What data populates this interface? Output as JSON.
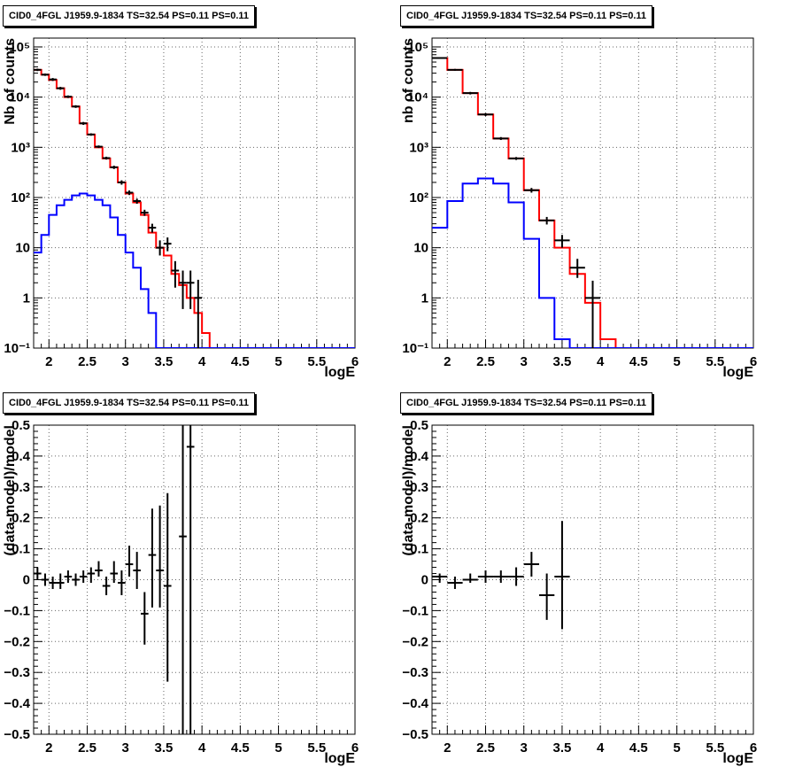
{
  "chart_data": [
    {
      "type": "histogram",
      "title": "CID0_4FGL J1959.9-1834 TS=32.54 PS=0.11 PS=0.11",
      "xlabel": "logE",
      "ylabel": "Nb of counts",
      "xlim": [
        1.8,
        6
      ],
      "ylim": [
        0.1,
        150000
      ],
      "yscale": "log",
      "grid": true,
      "x_ticks": [
        "2",
        "2.5",
        "3",
        "3.5",
        "4",
        "4.5",
        "5",
        "5.5",
        "6"
      ],
      "y_ticks": [
        {
          "v": 0.1,
          "label": "10⁻¹"
        },
        {
          "v": 1,
          "label": "1"
        },
        {
          "v": 10,
          "label": "10"
        },
        {
          "v": 100,
          "label": "10²"
        },
        {
          "v": 1000,
          "label": "10³"
        },
        {
          "v": 10000,
          "label": "10⁴"
        },
        {
          "v": 100000,
          "label": "10⁵"
        }
      ],
      "bin_edges": [
        1.8,
        1.9,
        2.0,
        2.1,
        2.2,
        2.3,
        2.4,
        2.5,
        2.6,
        2.7,
        2.8,
        2.9,
        3.0,
        3.1,
        3.2,
        3.3,
        3.4,
        3.5,
        3.6,
        3.7,
        3.8,
        3.9,
        4.0,
        4.1,
        4.2,
        4.3,
        4.4,
        4.5,
        4.6,
        4.7,
        4.8,
        4.9,
        5.0,
        5.1,
        5.2,
        5.3,
        5.4,
        5.5,
        5.6,
        5.7,
        5.8,
        5.9,
        6.0
      ],
      "series": [
        {
          "color": "#ff0000",
          "values": [
            35000,
            28000,
            22000,
            15000,
            10000,
            6500,
            3000,
            1800,
            1000,
            600,
            400,
            200,
            120,
            80,
            45,
            20,
            10,
            7,
            3,
            1.8,
            1,
            0.5,
            0.2,
            0.1,
            0.1,
            0.1,
            0.1,
            0.1,
            0.1,
            0.1,
            0.1,
            0.1,
            0.1,
            0.1,
            0.1,
            0.1,
            0.1,
            0.1,
            0.1,
            0.1,
            0.1,
            0.1
          ]
        },
        {
          "color": "#0000ff",
          "values": [
            8,
            18,
            45,
            70,
            90,
            110,
            120,
            110,
            90,
            70,
            40,
            18,
            8,
            4,
            1.5,
            0.5,
            0.1,
            0.1,
            0.1,
            0.1,
            0.1,
            0.1,
            0.1,
            0.1,
            0.1,
            0.1,
            0.1,
            0.1,
            0.1,
            0.1,
            0.1,
            0.1,
            0.1,
            0.1,
            0.1,
            0.1,
            0.1,
            0.1,
            0.1,
            0.1,
            0.1,
            0.1
          ]
        }
      ],
      "points": [
        {
          "x": 1.85,
          "y": 35000,
          "lo": 33000,
          "hi": 37000
        },
        {
          "x": 1.95,
          "y": 28000,
          "lo": 26500,
          "hi": 29500
        },
        {
          "x": 2.05,
          "y": 22500,
          "lo": 21000,
          "hi": 24000
        },
        {
          "x": 2.15,
          "y": 15000,
          "lo": 14000,
          "hi": 16000
        },
        {
          "x": 2.25,
          "y": 10200,
          "lo": 9600,
          "hi": 10800
        },
        {
          "x": 2.35,
          "y": 6500,
          "lo": 6100,
          "hi": 6900
        },
        {
          "x": 2.45,
          "y": 3000,
          "lo": 2800,
          "hi": 3200
        },
        {
          "x": 2.55,
          "y": 1800,
          "lo": 1700,
          "hi": 1900
        },
        {
          "x": 2.65,
          "y": 1030,
          "lo": 970,
          "hi": 1090
        },
        {
          "x": 2.75,
          "y": 610,
          "lo": 570,
          "hi": 650
        },
        {
          "x": 2.85,
          "y": 400,
          "lo": 370,
          "hi": 430
        },
        {
          "x": 2.95,
          "y": 200,
          "lo": 180,
          "hi": 220
        },
        {
          "x": 3.05,
          "y": 125,
          "lo": 112,
          "hi": 138
        },
        {
          "x": 3.15,
          "y": 85,
          "lo": 75,
          "hi": 95
        },
        {
          "x": 3.25,
          "y": 50,
          "lo": 43,
          "hi": 57
        },
        {
          "x": 3.35,
          "y": 25,
          "lo": 20,
          "hi": 30
        },
        {
          "x": 3.45,
          "y": 10,
          "lo": 7,
          "hi": 14
        },
        {
          "x": 3.55,
          "y": 12,
          "lo": 8.5,
          "hi": 16
        },
        {
          "x": 3.65,
          "y": 3.5,
          "lo": 1.6,
          "hi": 5.4
        },
        {
          "x": 3.75,
          "y": 2,
          "lo": 0.6,
          "hi": 3.5
        },
        {
          "x": 3.85,
          "y": 2,
          "lo": 0.6,
          "hi": 3.5
        },
        {
          "x": 3.95,
          "y": 1,
          "lo": 0.1,
          "hi": 2.3
        }
      ]
    },
    {
      "type": "histogram",
      "title": "CID0_4FGL J1959.9-1834 TS=32.54 PS=0.11 PS=0.11",
      "xlabel": "logE",
      "ylabel": "nb of counts",
      "xlim": [
        1.8,
        6
      ],
      "ylim": [
        0.1,
        150000
      ],
      "yscale": "log",
      "grid": true,
      "x_ticks": [
        "2",
        "2.5",
        "3",
        "3.5",
        "4",
        "4.5",
        "5",
        "5.5",
        "6"
      ],
      "y_ticks": [
        {
          "v": 0.1,
          "label": "10⁻¹"
        },
        {
          "v": 1,
          "label": "1"
        },
        {
          "v": 10,
          "label": "10"
        },
        {
          "v": 100,
          "label": "10²"
        },
        {
          "v": 1000,
          "label": "10³"
        },
        {
          "v": 10000,
          "label": "10⁴"
        },
        {
          "v": 100000,
          "label": "10⁵"
        }
      ],
      "bin_edges": [
        1.8,
        2.0,
        2.2,
        2.4,
        2.6,
        2.8,
        3.0,
        3.2,
        3.4,
        3.6,
        3.8,
        4.0,
        4.2,
        4.4,
        4.6,
        4.8,
        5.0,
        5.2,
        5.4,
        5.6,
        5.8,
        6.0
      ],
      "series": [
        {
          "color": "#ff0000",
          "values": [
            60000,
            35000,
            12000,
            4500,
            1500,
            600,
            140,
            35,
            10,
            3,
            0.8,
            0.15,
            0.1,
            0.1,
            0.1,
            0.1,
            0.1,
            0.1,
            0.1,
            0.1,
            0.1
          ]
        },
        {
          "color": "#0000ff",
          "values": [
            25,
            85,
            190,
            240,
            190,
            80,
            15,
            1,
            0.15,
            0.1,
            0.1,
            0.1,
            0.1,
            0.1,
            0.1,
            0.1,
            0.1,
            0.1,
            0.1,
            0.1,
            0.1
          ]
        }
      ],
      "points": [
        {
          "x": 1.9,
          "y": 60000,
          "lo": 58000,
          "hi": 62000
        },
        {
          "x": 2.1,
          "y": 35000,
          "lo": 33500,
          "hi": 36500
        },
        {
          "x": 2.3,
          "y": 12000,
          "lo": 11300,
          "hi": 12700
        },
        {
          "x": 2.5,
          "y": 4500,
          "lo": 4200,
          "hi": 4800
        },
        {
          "x": 2.7,
          "y": 1500,
          "lo": 1400,
          "hi": 1600
        },
        {
          "x": 2.9,
          "y": 600,
          "lo": 560,
          "hi": 640
        },
        {
          "x": 3.1,
          "y": 140,
          "lo": 125,
          "hi": 155
        },
        {
          "x": 3.3,
          "y": 35,
          "lo": 29,
          "hi": 41
        },
        {
          "x": 3.5,
          "y": 14,
          "lo": 10,
          "hi": 18
        },
        {
          "x": 3.7,
          "y": 4,
          "lo": 2.5,
          "hi": 6
        },
        {
          "x": 3.9,
          "y": 1,
          "lo": 0.1,
          "hi": 2.2
        }
      ]
    },
    {
      "type": "scatter",
      "title": "CID0_4FGL J1959.9-1834 TS=32.54 PS=0.11 PS=0.11",
      "xlabel": "logE",
      "ylabel": "(data-model)/model",
      "xlim": [
        1.8,
        6
      ],
      "ylim": [
        -0.5,
        0.5
      ],
      "grid": true,
      "x_ticks": [
        "2",
        "2.5",
        "3",
        "3.5",
        "4",
        "4.5",
        "5",
        "5.5",
        "6"
      ],
      "y_ticks": [
        {
          "v": -0.5,
          "label": "−0.5"
        },
        {
          "v": -0.4,
          "label": "−0.4"
        },
        {
          "v": -0.3,
          "label": "−0.3"
        },
        {
          "v": -0.2,
          "label": "−0.2"
        },
        {
          "v": -0.1,
          "label": "−0.1"
        },
        {
          "v": 0,
          "label": "0"
        },
        {
          "v": 0.1,
          "label": "0.1"
        },
        {
          "v": 0.2,
          "label": "0.2"
        },
        {
          "v": 0.3,
          "label": "0.3"
        },
        {
          "v": 0.4,
          "label": "0.4"
        },
        {
          "v": 0.5,
          "label": "0.5"
        }
      ],
      "points": [
        {
          "x": 1.85,
          "xerr": 0.05,
          "y": 0.02,
          "lo": 0.0,
          "hi": 0.04
        },
        {
          "x": 1.95,
          "xerr": 0.05,
          "y": 0.0,
          "lo": -0.02,
          "hi": 0.02
        },
        {
          "x": 2.05,
          "xerr": 0.05,
          "y": -0.01,
          "lo": -0.03,
          "hi": 0.01
        },
        {
          "x": 2.15,
          "xerr": 0.05,
          "y": -0.01,
          "lo": -0.03,
          "hi": 0.02
        },
        {
          "x": 2.25,
          "xerr": 0.05,
          "y": 0.01,
          "lo": -0.01,
          "hi": 0.03
        },
        {
          "x": 2.35,
          "xerr": 0.05,
          "y": 0.0,
          "lo": -0.02,
          "hi": 0.02
        },
        {
          "x": 2.45,
          "xerr": 0.05,
          "y": 0.01,
          "lo": -0.01,
          "hi": 0.03
        },
        {
          "x": 2.55,
          "xerr": 0.05,
          "y": 0.02,
          "lo": -0.01,
          "hi": 0.04
        },
        {
          "x": 2.65,
          "xerr": 0.05,
          "y": 0.03,
          "lo": 0.01,
          "hi": 0.06
        },
        {
          "x": 2.75,
          "xerr": 0.05,
          "y": -0.02,
          "lo": -0.05,
          "hi": 0.01
        },
        {
          "x": 2.85,
          "xerr": 0.05,
          "y": 0.02,
          "lo": -0.01,
          "hi": 0.06
        },
        {
          "x": 2.95,
          "xerr": 0.05,
          "y": -0.01,
          "lo": -0.05,
          "hi": 0.03
        },
        {
          "x": 3.05,
          "xerr": 0.05,
          "y": 0.05,
          "lo": 0.01,
          "hi": 0.11
        },
        {
          "x": 3.15,
          "xerr": 0.05,
          "y": 0.03,
          "lo": -0.03,
          "hi": 0.09
        },
        {
          "x": 3.25,
          "xerr": 0.05,
          "y": -0.11,
          "lo": -0.21,
          "hi": -0.04
        },
        {
          "x": 3.35,
          "xerr": 0.05,
          "y": 0.08,
          "lo": -0.09,
          "hi": 0.23
        },
        {
          "x": 3.45,
          "xerr": 0.05,
          "y": 0.03,
          "lo": -0.09,
          "hi": 0.24
        },
        {
          "x": 3.55,
          "xerr": 0.05,
          "y": -0.02,
          "lo": -0.33,
          "hi": 0.28
        },
        {
          "x": 3.75,
          "xerr": 0.05,
          "y": 0.14,
          "lo": -0.5,
          "hi": 0.5
        },
        {
          "x": 3.85,
          "xerr": 0.05,
          "y": 0.43,
          "lo": -0.5,
          "hi": 0.5
        }
      ]
    },
    {
      "type": "scatter",
      "title": "CID0_4FGL J1959.9-1834 TS=32.54 PS=0.11 PS=0.11",
      "xlabel": "logE",
      "ylabel": "(data-model)/model",
      "xlim": [
        1.8,
        6
      ],
      "ylim": [
        -0.5,
        0.5
      ],
      "grid": true,
      "x_ticks": [
        "2",
        "2.5",
        "3",
        "3.5",
        "4",
        "4.5",
        "5",
        "5.5",
        "6"
      ],
      "y_ticks": [
        {
          "v": -0.5,
          "label": "−0.5"
        },
        {
          "v": -0.4,
          "label": "−0.4"
        },
        {
          "v": -0.3,
          "label": "−0.3"
        },
        {
          "v": -0.2,
          "label": "−0.2"
        },
        {
          "v": -0.1,
          "label": "−0.1"
        },
        {
          "v": 0,
          "label": "0"
        },
        {
          "v": 0.1,
          "label": "0.1"
        },
        {
          "v": 0.2,
          "label": "0.2"
        },
        {
          "v": 0.3,
          "label": "0.3"
        },
        {
          "v": 0.4,
          "label": "0.4"
        },
        {
          "v": 0.5,
          "label": "0.5"
        }
      ],
      "points": [
        {
          "x": 1.9,
          "xerr": 0.1,
          "y": 0.01,
          "lo": -0.01,
          "hi": 0.02
        },
        {
          "x": 2.1,
          "xerr": 0.1,
          "y": -0.01,
          "lo": -0.03,
          "hi": 0.01
        },
        {
          "x": 2.3,
          "xerr": 0.1,
          "y": 0.0,
          "lo": -0.01,
          "hi": 0.02
        },
        {
          "x": 2.5,
          "xerr": 0.1,
          "y": 0.01,
          "lo": -0.01,
          "hi": 0.03
        },
        {
          "x": 2.7,
          "xerr": 0.1,
          "y": 0.01,
          "lo": -0.01,
          "hi": 0.03
        },
        {
          "x": 2.9,
          "xerr": 0.1,
          "y": 0.01,
          "lo": -0.02,
          "hi": 0.04
        },
        {
          "x": 3.1,
          "xerr": 0.1,
          "y": 0.05,
          "lo": 0.01,
          "hi": 0.09
        },
        {
          "x": 3.3,
          "xerr": 0.1,
          "y": -0.05,
          "lo": -0.13,
          "hi": 0.02
        },
        {
          "x": 3.5,
          "xerr": 0.1,
          "y": 0.01,
          "lo": -0.16,
          "hi": 0.19
        }
      ]
    }
  ]
}
